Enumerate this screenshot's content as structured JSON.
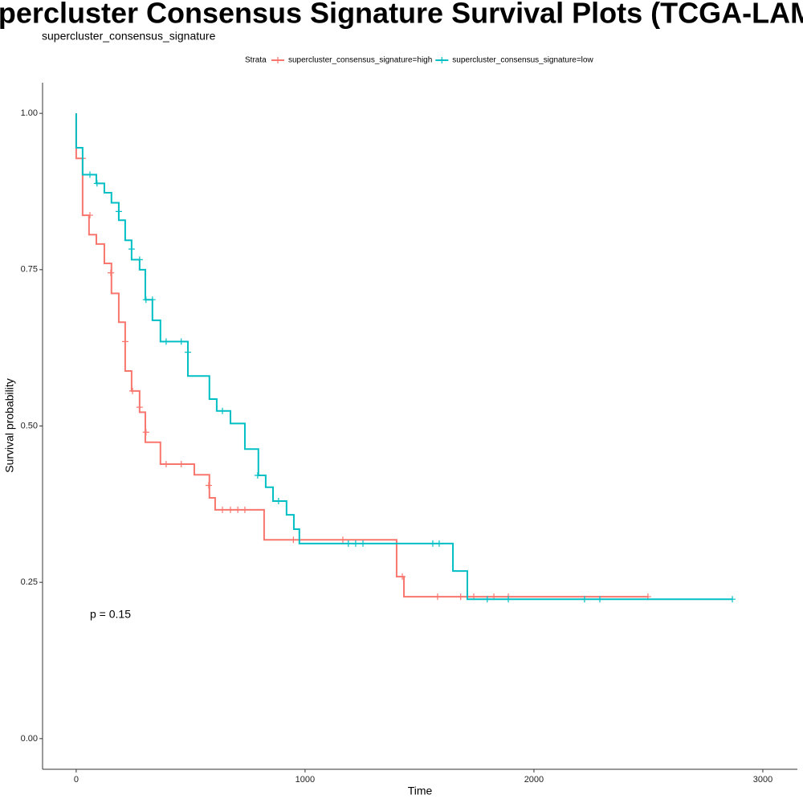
{
  "chart_data": {
    "type": "survival",
    "title": "Supercluster Consensus Signature Survival Plots (TCGA-LAML)",
    "subtitle": "supercluster_consensus_signature",
    "x_label": "Time",
    "y_label": "Survival probability",
    "annotation": "p = 0.15",
    "legend_title": "Strata",
    "legend_position": "top",
    "xlim": [
      -147,
      3151
    ],
    "ylim": [
      -0.049,
      1.049
    ],
    "xticks": [
      0,
      1000,
      2000,
      3000
    ],
    "yticks": [
      {
        "value": 0,
        "label": "0.00"
      },
      {
        "value": 0.25,
        "label": "0.25"
      },
      {
        "value": 0.5,
        "label": "0.50"
      },
      {
        "value": 0.75,
        "label": "0.75"
      },
      {
        "value": 1,
        "label": "1.00"
      }
    ],
    "series": [
      {
        "name": "supercluster_consensus_signature=high",
        "color": "#f8766d",
        "x": [
          0,
          0,
          28,
          56,
          88,
          123,
          154,
          186,
          214,
          242,
          277,
          302,
          368,
          516,
          582,
          607,
          821,
          1400,
          1432,
          2498
        ],
        "values": [
          1,
          0.928,
          0.837,
          0.806,
          0.791,
          0.76,
          0.712,
          0.666,
          0.588,
          0.556,
          0.522,
          0.474,
          0.439,
          0.422,
          0.385,
          0.366,
          0.318,
          0.259,
          0.227,
          0.227
        ],
        "censor_x": [
          28,
          60,
          151,
          214,
          246,
          277,
          305,
          393,
          459,
          579,
          639,
          674,
          706,
          737,
          949,
          1165,
          1425,
          1579,
          1680,
          1737,
          1825,
          1888,
          2498
        ],
        "censor_values": [
          0.928,
          0.837,
          0.745,
          0.635,
          0.556,
          0.53,
          0.49,
          0.439,
          0.439,
          0.405,
          0.366,
          0.366,
          0.366,
          0.366,
          0.318,
          0.318,
          0.259,
          0.227,
          0.227,
          0.227,
          0.227,
          0.227,
          0.227
        ]
      },
      {
        "name": "supercluster_consensus_signature=low",
        "color": "#00bfc4",
        "x": [
          0,
          0,
          28,
          88,
          123,
          154,
          186,
          214,
          242,
          277,
          302,
          333,
          368,
          488,
          582,
          614,
          674,
          737,
          796,
          828,
          860,
          919,
          951,
          975,
          1646,
          1709,
          2867
        ],
        "values": [
          1,
          0.945,
          0.902,
          0.888,
          0.873,
          0.857,
          0.829,
          0.797,
          0.766,
          0.75,
          0.702,
          0.669,
          0.635,
          0.58,
          0.543,
          0.524,
          0.504,
          0.463,
          0.421,
          0.402,
          0.38,
          0.358,
          0.335,
          0.312,
          0.268,
          0.223,
          0.223
        ],
        "censor_x": [
          60,
          91,
          186,
          242,
          277,
          305,
          333,
          393,
          459,
          488,
          639,
          793,
          884,
          1189,
          1221,
          1253,
          1558,
          1586,
          1796,
          1888,
          2221,
          2288,
          2867
        ],
        "censor_values": [
          0.902,
          0.888,
          0.843,
          0.783,
          0.766,
          0.702,
          0.702,
          0.635,
          0.635,
          0.618,
          0.524,
          0.421,
          0.38,
          0.312,
          0.312,
          0.312,
          0.312,
          0.312,
          0.223,
          0.223,
          0.223,
          0.223,
          0.223
        ]
      }
    ]
  }
}
